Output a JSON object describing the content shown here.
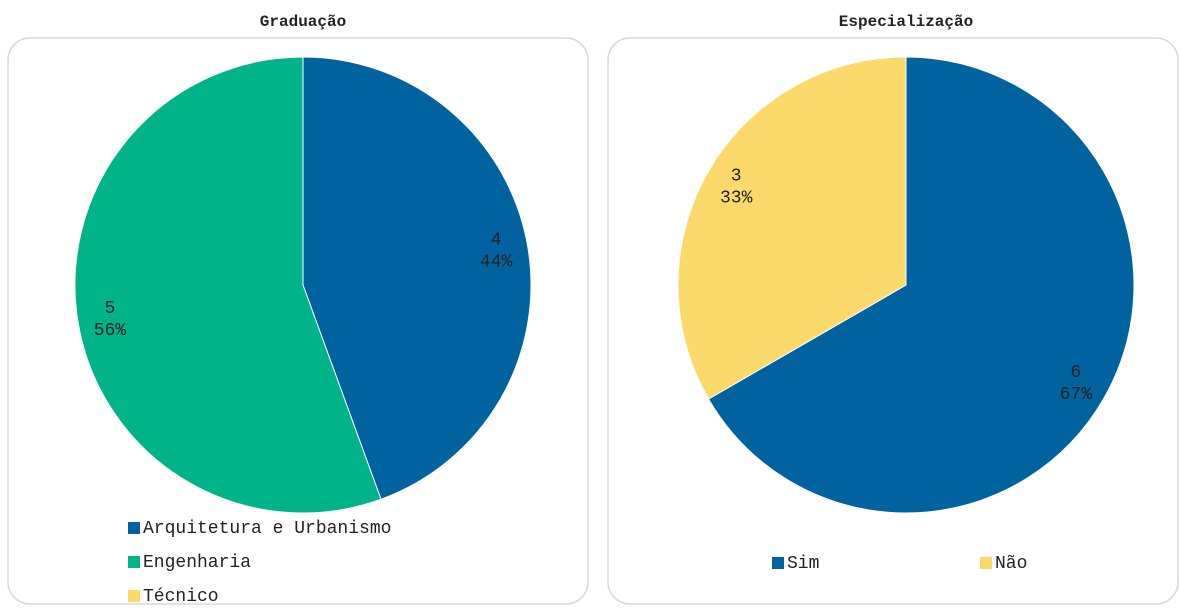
{
  "chart_data": [
    {
      "type": "pie",
      "title": "Graduação",
      "categories": [
        "Arquitetura e Urbanismo",
        "Engenharia",
        "Técnico"
      ],
      "values": [
        4,
        5,
        0
      ],
      "percent_labels": [
        "44%",
        "56%",
        null
      ],
      "colors": [
        "#0063a0",
        "#00b388",
        "#fcd96b"
      ],
      "legend": "bottom",
      "legend_layout": "vertical"
    },
    {
      "type": "pie",
      "title": "Especialização",
      "categories": [
        "Sim",
        "Não"
      ],
      "values": [
        6,
        3
      ],
      "percent_labels": [
        "67%",
        "33%"
      ],
      "colors": [
        "#0063a0",
        "#fcd96b"
      ],
      "legend": "bottom",
      "legend_layout": "horizontal"
    }
  ]
}
